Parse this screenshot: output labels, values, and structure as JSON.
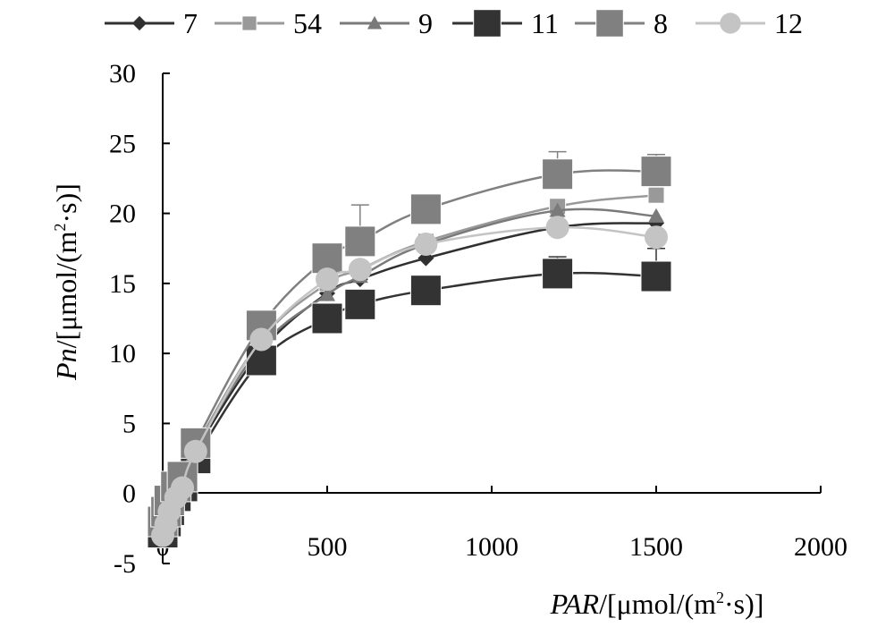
{
  "chart_data": {
    "type": "line",
    "title": "",
    "xlabel": {
      "italic": "PAR",
      "pre": "/[μmol/(m",
      "sup": "2",
      "post": "·s)]"
    },
    "ylabel": {
      "italic": "Pn",
      "pre": "/[μmol/(m",
      "sup": "2",
      "post": "·s)]"
    },
    "xlim": [
      0,
      2000
    ],
    "ylim": [
      -5,
      30
    ],
    "xticks": [
      "0",
      "500",
      "1000",
      "1500",
      "2000"
    ],
    "yticks": [
      "-5",
      "0",
      "5",
      "10",
      "15",
      "20",
      "25",
      "30"
    ],
    "grid": false,
    "legend_position": "top",
    "x": [
      0,
      10,
      20,
      40,
      60,
      100,
      300,
      500,
      600,
      800,
      1200,
      1500
    ],
    "series": [
      {
        "name": "7",
        "marker": "diamond",
        "color": "#303030",
        "size": "small",
        "values": [
          -2.5,
          -1.8,
          -1.0,
          0.0,
          0.8,
          3.0,
          10.2,
          14.3,
          15.3,
          16.8,
          19.0,
          19.3
        ],
        "errors": [
          0,
          0,
          0,
          0,
          0,
          0,
          0,
          0,
          0,
          0,
          0,
          0
        ]
      },
      {
        "name": "54",
        "marker": "square",
        "color": "#999999",
        "size": "small",
        "values": [
          -2.2,
          -1.5,
          -0.8,
          0.2,
          1.0,
          3.3,
          11.0,
          15.0,
          16.0,
          18.0,
          20.5,
          21.3
        ],
        "errors": [
          0,
          0,
          0,
          0,
          0,
          0,
          0,
          0,
          0,
          0,
          0,
          0
        ]
      },
      {
        "name": "9",
        "marker": "triangle",
        "color": "#7a7a7a",
        "size": "small",
        "values": [
          -2.3,
          -1.6,
          -0.9,
          0.1,
          0.9,
          3.2,
          10.5,
          14.2,
          15.5,
          17.8,
          20.2,
          19.8
        ],
        "errors": [
          0,
          0,
          0,
          0,
          0,
          0,
          0,
          0,
          0,
          0,
          0,
          0
        ]
      },
      {
        "name": "11",
        "marker": "square",
        "color": "#333333",
        "size": "large",
        "values": [
          -2.8,
          -2.0,
          -1.2,
          -0.2,
          0.5,
          2.5,
          9.5,
          12.5,
          13.5,
          14.5,
          15.7,
          15.5
        ],
        "errors": [
          0,
          0,
          0,
          0,
          0,
          0,
          0,
          0,
          0,
          0,
          1.2,
          2.0
        ]
      },
      {
        "name": "8",
        "marker": "square",
        "color": "#808080",
        "size": "large",
        "values": [
          -2.0,
          -1.3,
          -0.5,
          0.5,
          1.2,
          3.6,
          12.0,
          16.8,
          18.0,
          20.3,
          22.8,
          23.0
        ],
        "errors": [
          0,
          0,
          0,
          0,
          0,
          0,
          0,
          0,
          2.6,
          0,
          1.6,
          1.2
        ]
      },
      {
        "name": "12",
        "marker": "circle",
        "color": "#c4c4c4",
        "size": "medium",
        "values": [
          -3.0,
          -2.2,
          -1.3,
          -0.3,
          0.4,
          3.0,
          11.0,
          15.3,
          16.0,
          17.8,
          19.0,
          18.3
        ],
        "errors": [
          0,
          0,
          0,
          0,
          0,
          0,
          0,
          0,
          0,
          0,
          0,
          0
        ]
      }
    ]
  }
}
